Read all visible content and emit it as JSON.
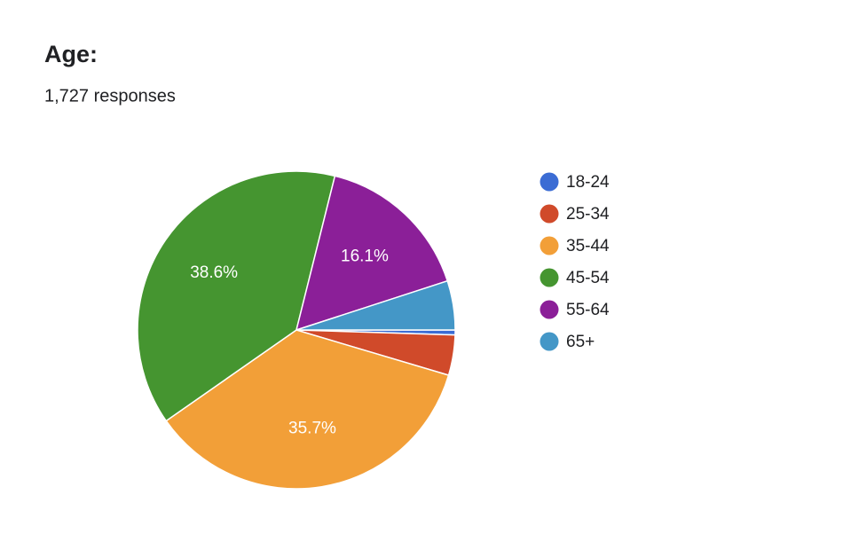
{
  "chart_data": {
    "type": "pie",
    "title": "Age:",
    "subtitle": "1,727 responses",
    "categories": [
      "18-24",
      "25-34",
      "35-44",
      "45-54",
      "55-64",
      "65+"
    ],
    "values": [
      0.5,
      4.1,
      35.7,
      38.6,
      16.1,
      5.0
    ],
    "value_labels": [
      null,
      null,
      "35.7%",
      "38.6%",
      "16.1%",
      null
    ],
    "colors": [
      "#3b6cd4",
      "#d04a2a",
      "#f29f38",
      "#459530",
      "#8b1f98",
      "#4497c7"
    ],
    "legend": "right"
  }
}
